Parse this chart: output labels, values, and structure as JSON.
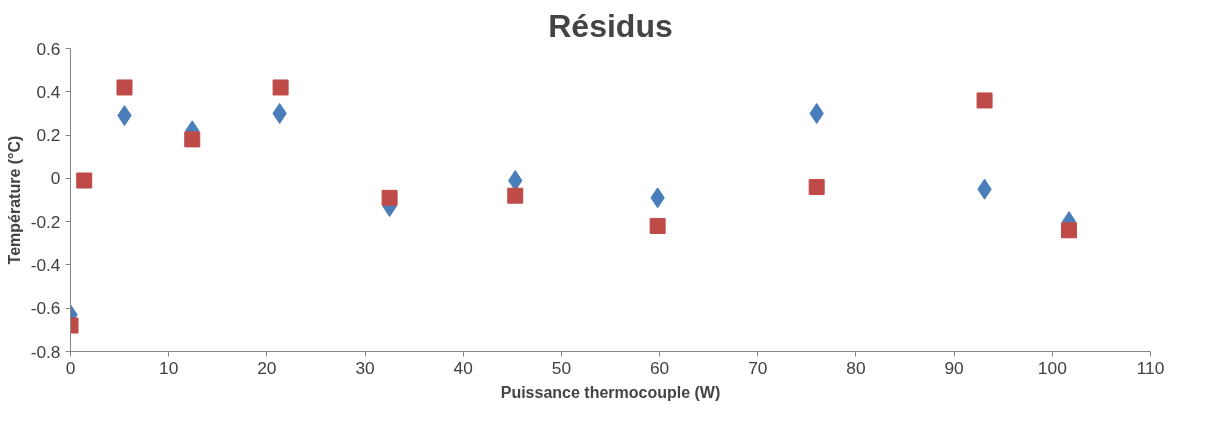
{
  "chart_data": {
    "type": "scatter",
    "title": "Résidus",
    "xlabel": "Puissance thermocouple (W)",
    "ylabel": "Température (°C)",
    "xlim": [
      0,
      110
    ],
    "xticks": [
      0,
      10,
      20,
      30,
      40,
      50,
      60,
      70,
      80,
      90,
      100,
      110
    ],
    "ylim": [
      -0.8,
      0.6
    ],
    "yticks": [
      -0.8,
      -0.6,
      -0.4,
      -0.2,
      0,
      0.2,
      0.4,
      0.6
    ],
    "grid": false,
    "series": [
      {
        "color": "#4a7ebb",
        "marker": "diamond",
        "x": [
          0,
          1.4,
          5.5,
          12.4,
          21.3,
          32.5,
          45.3,
          59.8,
          76.0,
          93.1,
          101.7
        ],
        "values": [
          -0.63,
          null,
          0.29,
          0.22,
          0.3,
          -0.13,
          -0.01,
          -0.09,
          0.3,
          -0.05,
          -0.2
        ]
      },
      {
        "color": "#be4b48",
        "marker": "square",
        "x": [
          0,
          1.4,
          5.5,
          12.4,
          21.4,
          32.5,
          45.3,
          59.8,
          76.0,
          93.1,
          101.7
        ],
        "values": [
          -0.68,
          -0.01,
          0.42,
          0.18,
          0.42,
          -0.09,
          -0.08,
          -0.22,
          -0.04,
          0.36,
          -0.24
        ]
      }
    ]
  }
}
